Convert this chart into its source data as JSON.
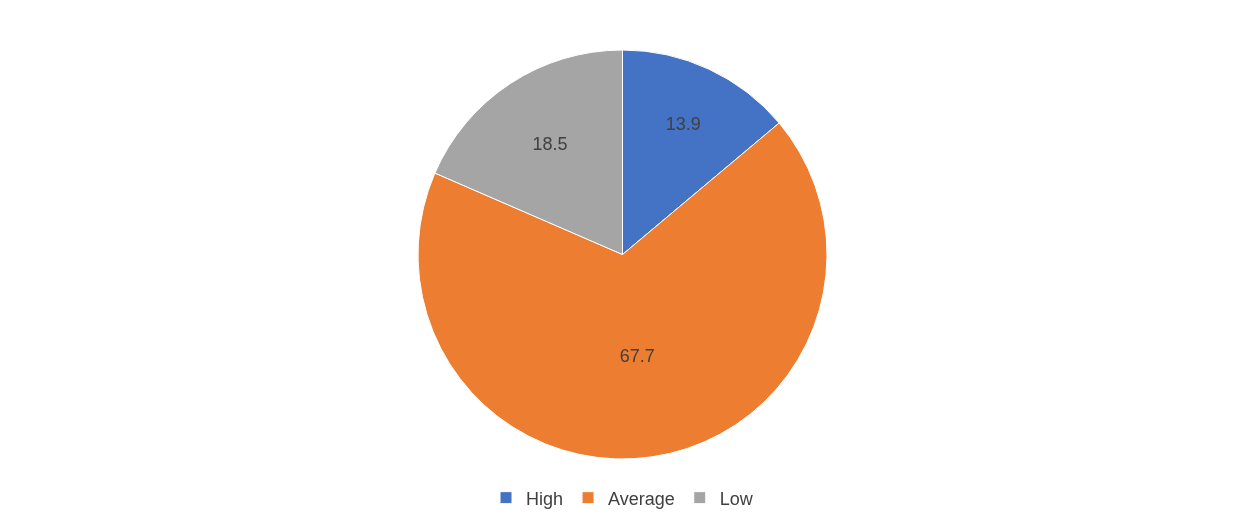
{
  "chart_data": {
    "type": "pie",
    "categories": [
      "High",
      "Average",
      "Low"
    ],
    "values": [
      13.9,
      67.7,
      18.5
    ],
    "colors": [
      "#4472c4",
      "#ed7d31",
      "#a5a5a5"
    ],
    "data_labels": true,
    "legend": "bottom"
  }
}
